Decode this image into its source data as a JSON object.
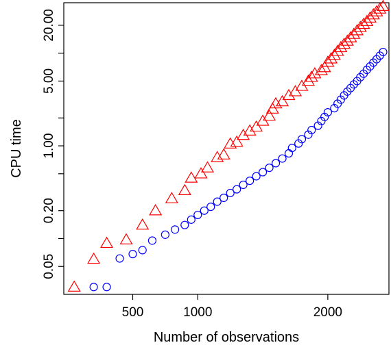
{
  "chart_data": {
    "type": "scatter",
    "title": "",
    "xlabel": "Number of observations",
    "ylabel": "CPU time",
    "x_scale": "linear",
    "y_scale": "log",
    "xlim": [
      -30,
      2470
    ],
    "ylim": [
      0.025,
      35
    ],
    "x_ticks": [
      500,
      1000,
      2000
    ],
    "x_tick_labels": [
      "500",
      "1000",
      "2000"
    ],
    "y_ticks": [
      0.05,
      0.2,
      1,
      5,
      20
    ],
    "y_tick_labels": [
      "0.05",
      "0.20",
      "1.00",
      "5.00",
      "20.00"
    ],
    "y_minor_ticks": [
      0.1,
      0.5,
      2,
      10
    ],
    "grid": false,
    "legend": null,
    "series": [
      {
        "marker": "triangle",
        "color": "#ff0000",
        "points": [
          [
            50,
            0.03
          ],
          [
            200,
            0.06
          ],
          [
            300,
            0.089
          ],
          [
            450,
            0.097
          ],
          [
            575,
            0.14
          ],
          [
            675,
            0.2
          ],
          [
            800,
            0.27
          ],
          [
            900,
            0.33
          ],
          [
            950,
            0.45
          ],
          [
            1025,
            0.5
          ],
          [
            1075,
            0.58
          ],
          [
            1150,
            0.75
          ],
          [
            1200,
            0.8
          ],
          [
            1250,
            1.05
          ],
          [
            1300,
            1.1
          ],
          [
            1350,
            1.3
          ],
          [
            1400,
            1.45
          ],
          [
            1450,
            1.6
          ],
          [
            1500,
            1.85
          ],
          [
            1550,
            2.1
          ],
          [
            1575,
            2.5
          ],
          [
            1600,
            2.85
          ],
          [
            1650,
            3.0
          ],
          [
            1700,
            3.5
          ],
          [
            1750,
            3.85
          ],
          [
            1800,
            4.4
          ],
          [
            1850,
            5.0
          ],
          [
            1875,
            5.5
          ],
          [
            1900,
            6.0
          ],
          [
            1950,
            6.5
          ],
          [
            1975,
            7.0
          ],
          [
            2000,
            8.0
          ],
          [
            2025,
            8.7
          ],
          [
            2050,
            9.5
          ],
          [
            2075,
            10.5
          ],
          [
            2100,
            11.5
          ],
          [
            2125,
            12.5
          ],
          [
            2150,
            13.5
          ],
          [
            2175,
            14.7
          ],
          [
            2200,
            16.0
          ],
          [
            2225,
            17.5
          ],
          [
            2250,
            19.0
          ],
          [
            2275,
            20.5
          ],
          [
            2300,
            22.0
          ],
          [
            2325,
            24.0
          ],
          [
            2350,
            26.0
          ],
          [
            2375,
            28.0
          ],
          [
            2400,
            30.0
          ],
          [
            2425,
            32.0
          ]
        ]
      },
      {
        "marker": "circle",
        "color": "#0000ff",
        "points": [
          [
            200,
            0.03
          ],
          [
            300,
            0.03
          ],
          [
            400,
            0.061
          ],
          [
            500,
            0.068
          ],
          [
            575,
            0.075
          ],
          [
            650,
            0.095
          ],
          [
            750,
            0.11
          ],
          [
            825,
            0.125
          ],
          [
            900,
            0.14
          ],
          [
            950,
            0.16
          ],
          [
            1000,
            0.18
          ],
          [
            1050,
            0.2
          ],
          [
            1100,
            0.22
          ],
          [
            1150,
            0.25
          ],
          [
            1200,
            0.275
          ],
          [
            1250,
            0.31
          ],
          [
            1300,
            0.34
          ],
          [
            1350,
            0.38
          ],
          [
            1400,
            0.42
          ],
          [
            1450,
            0.47
          ],
          [
            1500,
            0.52
          ],
          [
            1550,
            0.58
          ],
          [
            1600,
            0.65
          ],
          [
            1650,
            0.73
          ],
          [
            1700,
            0.83
          ],
          [
            1725,
            0.95
          ],
          [
            1775,
            1.06
          ],
          [
            1800,
            1.18
          ],
          [
            1850,
            1.32
          ],
          [
            1875,
            1.48
          ],
          [
            1925,
            1.65
          ],
          [
            1950,
            1.85
          ],
          [
            1975,
            2.05
          ],
          [
            2000,
            2.3
          ],
          [
            2050,
            2.55
          ],
          [
            2075,
            2.85
          ],
          [
            2100,
            3.15
          ],
          [
            2125,
            3.5
          ],
          [
            2150,
            3.85
          ],
          [
            2175,
            4.2
          ],
          [
            2200,
            4.6
          ],
          [
            2225,
            5.0
          ],
          [
            2250,
            5.5
          ],
          [
            2275,
            6.0
          ],
          [
            2300,
            6.6
          ],
          [
            2325,
            7.2
          ],
          [
            2350,
            7.9
          ],
          [
            2375,
            8.6
          ],
          [
            2400,
            9.4
          ],
          [
            2425,
            10.3
          ]
        ]
      }
    ]
  }
}
